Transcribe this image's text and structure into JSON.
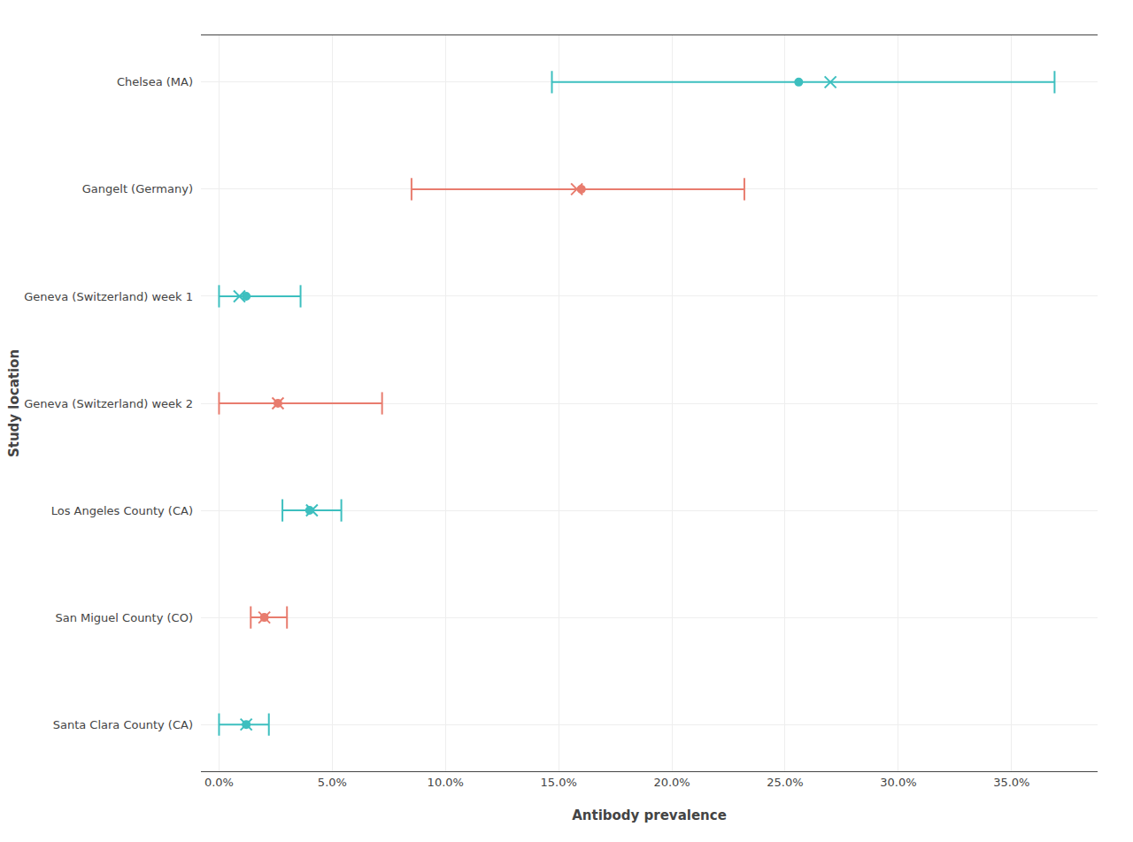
{
  "chart_data": {
    "type": "forest",
    "xlabel": "Antibody prevalence",
    "ylabel": "Study location",
    "categories": [
      "Chelsea (MA)",
      "Gangelt (Germany)",
      "Geneva (Switzerland) week 1",
      "Geneva (Switzerland) week 2",
      "Los Angeles County (CA)",
      "San Miguel County (CO)",
      "Santa Clara County (CA)"
    ],
    "series": [
      {
        "marker": "x",
        "values": [
          0.27,
          0.158,
          0.009,
          0.026,
          0.041,
          0.02,
          0.012
        ]
      },
      {
        "marker": "circle",
        "values": [
          0.256,
          0.16,
          0.012,
          0.026,
          0.04,
          0.02,
          0.012
        ]
      }
    ],
    "ci_low": [
      0.147,
      0.085,
      0.0,
      0.0,
      0.028,
      0.014,
      0.0
    ],
    "ci_high": [
      0.369,
      0.232,
      0.036,
      0.072,
      0.054,
      0.03,
      0.022
    ],
    "colors": [
      "#3dbfbf",
      "#e87c6e",
      "#3dbfbf",
      "#e87c6e",
      "#3dbfbf",
      "#e87c6e",
      "#3dbfbf"
    ],
    "xlim": [
      -0.008,
      0.388
    ],
    "xticks": [
      {
        "value": 0.0,
        "label": "0.0%"
      },
      {
        "value": 0.05,
        "label": "5.0%"
      },
      {
        "value": 0.1,
        "label": "10.0%"
      },
      {
        "value": 0.15,
        "label": "15.0%"
      },
      {
        "value": 0.2,
        "label": "20.0%"
      },
      {
        "value": 0.25,
        "label": "25.0%"
      },
      {
        "value": 0.3,
        "label": "30.0%"
      },
      {
        "value": 0.35,
        "label": "35.0%"
      }
    ],
    "grid": true
  }
}
